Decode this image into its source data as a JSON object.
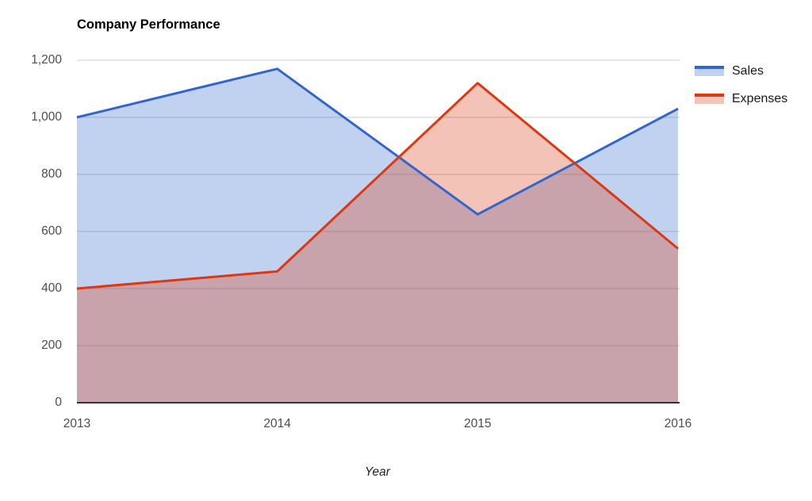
{
  "chart_data": {
    "type": "area",
    "title": "Company Performance",
    "xlabel": "Year",
    "ylabel": "",
    "categories": [
      "2013",
      "2014",
      "2015",
      "2016"
    ],
    "series": [
      {
        "name": "Sales",
        "values": [
          1000,
          1170,
          660,
          1030
        ],
        "line_color": "#3366CC",
        "fill_color": "rgba(51,102,204,0.30)"
      },
      {
        "name": "Expenses",
        "values": [
          400,
          460,
          1120,
          540
        ],
        "line_color": "#DC3912",
        "fill_color": "rgba(220,57,18,0.30)"
      }
    ],
    "ylim": [
      0,
      1200
    ],
    "yticks": [
      0,
      200,
      400,
      600,
      800,
      1000,
      1200
    ],
    "ytick_labels": [
      "0",
      "200",
      "400",
      "600",
      "800",
      "1,000",
      "1,200"
    ],
    "grid": true,
    "legend_position": "right",
    "colors": {
      "background": "#FFFFFF",
      "gridline": "#CCCCCC",
      "baseline": "#333333",
      "tick_text": "#4D4D4D",
      "axis_title_text": "#222222",
      "title_text": "#000000"
    }
  }
}
